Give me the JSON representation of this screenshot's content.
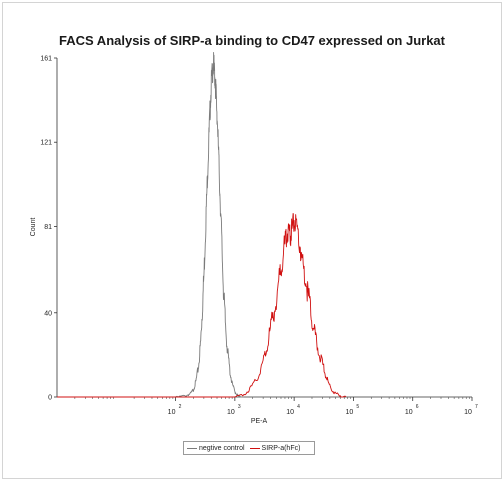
{
  "chart_data": {
    "type": "line",
    "title": "FACS Analysis of SIRP-a binding to CD47 expressed on Jurkat",
    "xlabel": "PE-A",
    "ylabel": "Count",
    "x_scale": "log",
    "xlim": [
      1,
      10000000
    ],
    "ylim": [
      0,
      161
    ],
    "x_ticks": [
      {
        "value": 100,
        "base": "10",
        "exp": "2"
      },
      {
        "value": 1000,
        "base": "10",
        "exp": "3"
      },
      {
        "value": 10000,
        "base": "10",
        "exp": "4"
      },
      {
        "value": 100000,
        "base": "10",
        "exp": "5"
      },
      {
        "value": 1000000,
        "base": "10",
        "exp": "6"
      },
      {
        "value": 10000000,
        "base": "10",
        "exp": "7"
      }
    ],
    "y_ticks": [
      {
        "value": 0,
        "label": "0"
      },
      {
        "value": 40,
        "label": "40"
      },
      {
        "value": 81,
        "label": "81"
      },
      {
        "value": 121,
        "label": "121"
      },
      {
        "value": 161,
        "label": "161"
      }
    ],
    "grid": false,
    "legend_position": "bottom-center",
    "series": [
      {
        "name": "negtive control",
        "color": "#7a7a7a",
        "x": [
          100,
          150,
          180,
          200,
          220,
          245,
          265,
          280,
          300,
          320,
          340,
          360,
          380,
          400,
          420,
          440,
          460,
          480,
          500,
          530,
          560,
          600,
          640,
          690,
          750,
          820,
          900,
          1000,
          1120,
          1260,
          1400
        ],
        "y": [
          0,
          1,
          2,
          4,
          8,
          16,
          28,
          42,
          60,
          82,
          103,
          122,
          138,
          152,
          158,
          161,
          155,
          148,
          138,
          120,
          100,
          78,
          55,
          38,
          24,
          14,
          7,
          3,
          1,
          0,
          0
        ]
      },
      {
        "name": "SIRP-a(hFc)",
        "color": "#d01010",
        "x": [
          1000,
          1500,
          2000,
          2500,
          3000,
          3600,
          4200,
          5000,
          5800,
          6600,
          7400,
          8000,
          8600,
          9200,
          10000,
          11000,
          12500,
          14000,
          16000,
          18500,
          21000,
          24000,
          28000,
          32000,
          37000,
          43000,
          50000,
          60000,
          75000
        ],
        "y": [
          0,
          2,
          6,
          11,
          18,
          28,
          38,
          50,
          62,
          72,
          79,
          84,
          80,
          83,
          87,
          82,
          75,
          66,
          57,
          46,
          36,
          27,
          20,
          14,
          8,
          4,
          2,
          1,
          0
        ]
      }
    ]
  }
}
